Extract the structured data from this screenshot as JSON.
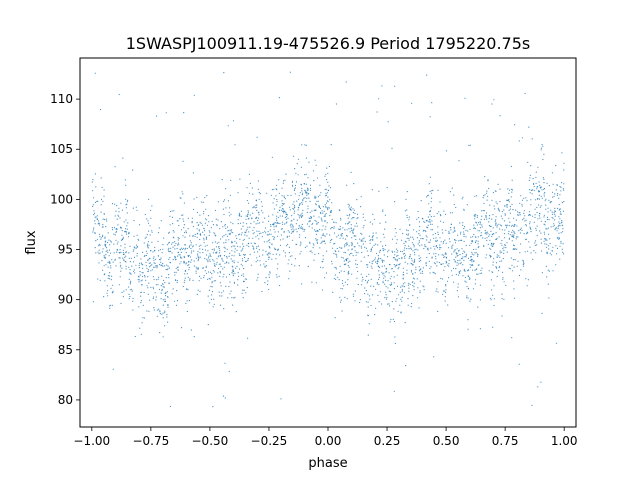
{
  "chart_data": {
    "type": "scatter",
    "title": "1SWASPJ100911.19-475526.9 Period 1795220.75s",
    "xlabel": "phase",
    "ylabel": "flux",
    "xlim": [
      -1.05,
      1.05
    ],
    "ylim": [
      77.3,
      114.1
    ],
    "xticks": [
      -1.0,
      -0.75,
      -0.5,
      -0.25,
      0.0,
      0.25,
      0.5,
      0.75,
      1.0
    ],
    "xtick_labels": [
      "−1.00",
      "−0.75",
      "−0.50",
      "−0.25",
      "0.00",
      "0.25",
      "0.50",
      "0.75",
      "1.00"
    ],
    "yticks": [
      80,
      85,
      90,
      95,
      100,
      105,
      110
    ],
    "ytick_labels": [
      "80",
      "85",
      "90",
      "95",
      "100",
      "105",
      "110"
    ],
    "grid": false,
    "legend": "none",
    "marker_color": "#1f77b4",
    "profile": {
      "phase": [
        -1.0,
        -0.95,
        -0.9,
        -0.85,
        -0.8,
        -0.75,
        -0.7,
        -0.65,
        -0.6,
        -0.55,
        -0.5,
        -0.45,
        -0.4,
        -0.35,
        -0.3,
        -0.25,
        -0.2,
        -0.15,
        -0.1,
        -0.05,
        0.0,
        0.05,
        0.1,
        0.15,
        0.2,
        0.25,
        0.3,
        0.35,
        0.4,
        0.45,
        0.5,
        0.55,
        0.6,
        0.65,
        0.7,
        0.75,
        0.8,
        0.85,
        0.9,
        0.95,
        1.0
      ],
      "flux_mean": [
        97.5,
        95.0,
        96.0,
        94.5,
        93.5,
        93.0,
        92.5,
        94.0,
        96.0,
        95.0,
        95.0,
        94.5,
        95.0,
        96.0,
        96.5,
        96.0,
        97.0,
        98.0,
        99.0,
        98.0,
        97.5,
        95.0,
        96.0,
        94.5,
        93.5,
        93.0,
        92.5,
        94.0,
        96.0,
        95.0,
        95.0,
        94.5,
        95.0,
        96.0,
        96.5,
        96.0,
        97.0,
        98.0,
        99.0,
        98.0,
        97.5
      ],
      "flux_spread": 3.0
    }
  }
}
